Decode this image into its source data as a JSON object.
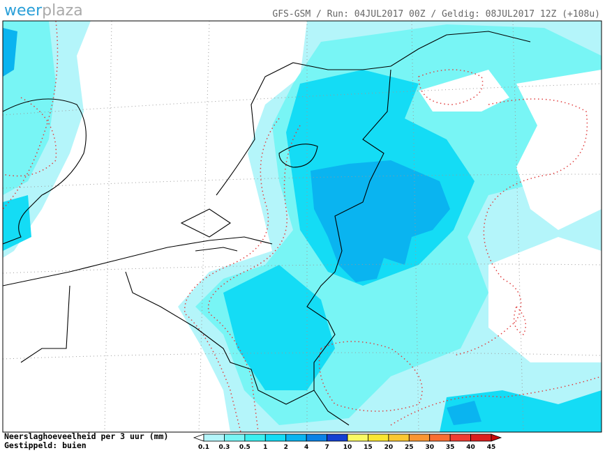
{
  "logo": {
    "prefix": "weer",
    "suffix": "plaza"
  },
  "header": "GFS-GSM / Run: 04JUL2017 00Z / Geldig: 08JUL2017 12Z (+108u)",
  "legend": {
    "title": "Neerslaghoeveelheid per 3 uur (mm)",
    "subtitle": "Gestippeld: buien"
  },
  "colorbar": {
    "labels": [
      0.1,
      0.3,
      0.5,
      1,
      2,
      4,
      7,
      10,
      15,
      20,
      25,
      30,
      35,
      40,
      45
    ],
    "colors": [
      "#ffffff",
      "#b4f5fa",
      "#78f5f5",
      "#3cf0f0",
      "#14dcf5",
      "#0ab4f0",
      "#0a82e6",
      "#1440d2",
      "#fafa64",
      "#fae632",
      "#fac832",
      "#fa9632",
      "#fa6e32",
      "#f03c32",
      "#dc1e1e",
      "#c80a0a"
    ]
  }
}
